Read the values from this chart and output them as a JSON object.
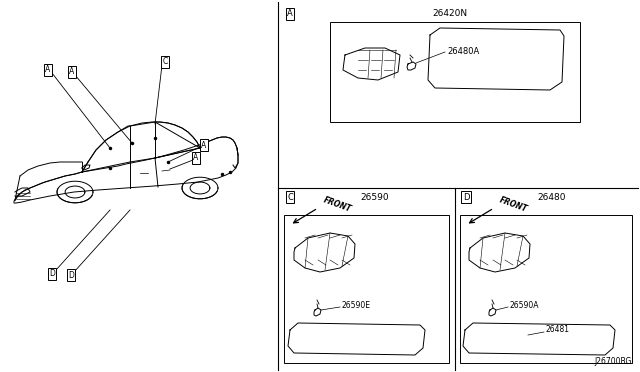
{
  "bg_color": "#ffffff",
  "line_color": "#000000",
  "fig_width": 6.4,
  "fig_height": 3.72,
  "diagram_code": "J26700BG",
  "part_A_number": "26420N",
  "part_A_sub": "26480A",
  "part_C_number": "26590",
  "part_C_sub": "26590E",
  "part_D_number": "26480",
  "part_D_sub1": "26590A",
  "part_D_sub2": "26481"
}
